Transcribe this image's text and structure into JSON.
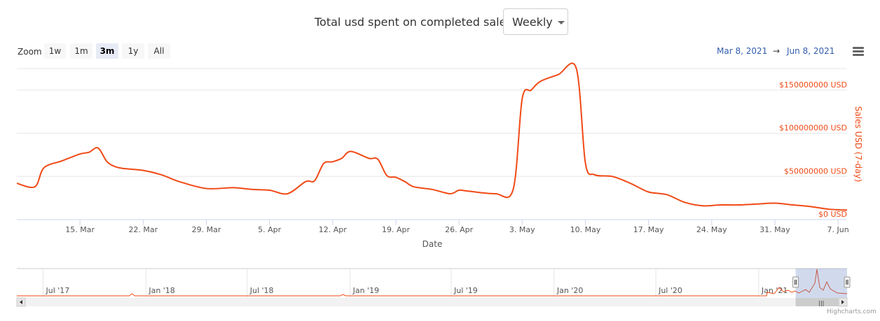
{
  "header": {
    "title": "Total usd spent on completed sales.",
    "period_select": {
      "value": "Weekly"
    }
  },
  "zoom": {
    "label": "Zoom",
    "buttons": [
      "1w",
      "1m",
      "3m",
      "1y",
      "All"
    ],
    "active": "3m"
  },
  "range": {
    "from": "Mar 8, 2021",
    "arrow": "→",
    "to": "Jun 8, 2021"
  },
  "credit": "Highcharts.com",
  "colors": {
    "series": "#f04a16",
    "axis_title": "#f04a16",
    "navigator_mask": "#6685c2"
  },
  "chart_data": {
    "type": "line",
    "title": "Total usd spent on completed sales.",
    "xlabel": "Date",
    "ylabel": "Sales USD (7-day)",
    "ylim": [
      0,
      175000000
    ],
    "x_range": [
      "2021-03-08",
      "2021-06-08"
    ],
    "x_ticks": [
      "15. Mar",
      "22. Mar",
      "29. Mar",
      "5. Apr",
      "12. Apr",
      "19. Apr",
      "26. Apr",
      "3. May",
      "10. May",
      "17. May",
      "24. May",
      "31. May",
      "7. Jun"
    ],
    "y_ticks": [
      "$0 USD",
      "$50000000 USD",
      "$100000000 USD",
      "$150000000 USD"
    ],
    "y_tick_values": [
      0,
      50000000,
      100000000,
      150000000
    ],
    "grid": true,
    "series": [
      {
        "name": "Sales USD (7-day)",
        "x": [
          "2021-03-08",
          "2021-03-10",
          "2021-03-11",
          "2021-03-13",
          "2021-03-15",
          "2021-03-16",
          "2021-03-17",
          "2021-03-18",
          "2021-03-19",
          "2021-03-20",
          "2021-03-22",
          "2021-03-24",
          "2021-03-26",
          "2021-03-29",
          "2021-04-01",
          "2021-04-03",
          "2021-04-05",
          "2021-04-07",
          "2021-04-09",
          "2021-04-10",
          "2021-04-11",
          "2021-04-12",
          "2021-04-13",
          "2021-04-14",
          "2021-04-16",
          "2021-04-17",
          "2021-04-18",
          "2021-04-19",
          "2021-04-20",
          "2021-04-21",
          "2021-04-23",
          "2021-04-25",
          "2021-04-26",
          "2021-04-27",
          "2021-04-30",
          "2021-05-02",
          "2021-05-03",
          "2021-05-04",
          "2021-05-05",
          "2021-05-07",
          "2021-05-09",
          "2021-05-10",
          "2021-05-11",
          "2021-05-13",
          "2021-05-15",
          "2021-05-17",
          "2021-05-19",
          "2021-05-21",
          "2021-05-23",
          "2021-05-25",
          "2021-05-27",
          "2021-05-29",
          "2021-05-31",
          "2021-06-02",
          "2021-06-04",
          "2021-06-06",
          "2021-06-08"
        ],
        "values": [
          42000000,
          38000000,
          60000000,
          68000000,
          76000000,
          78000000,
          83000000,
          67000000,
          61000000,
          59000000,
          57000000,
          52000000,
          44000000,
          36000000,
          37000000,
          35000000,
          34000000,
          30000000,
          44000000,
          45000000,
          65000000,
          67000000,
          71000000,
          79000000,
          71000000,
          70000000,
          51000000,
          49000000,
          44000000,
          38000000,
          35000000,
          30000000,
          34000000,
          33000000,
          30000000,
          35000000,
          140000000,
          150000000,
          160000000,
          168000000,
          175000000,
          66000000,
          52000000,
          50000000,
          42000000,
          32000000,
          29000000,
          20000000,
          16000000,
          17000000,
          17000000,
          18000000,
          19000000,
          17000000,
          15000000,
          12000000,
          11000000
        ]
      }
    ],
    "navigator": {
      "x_ticks": [
        "Jul '17",
        "Jan '18",
        "Jul '18",
        "Jan '19",
        "Jul '19",
        "Jan '20",
        "Jul '20",
        "Jan '21"
      ]
    }
  }
}
